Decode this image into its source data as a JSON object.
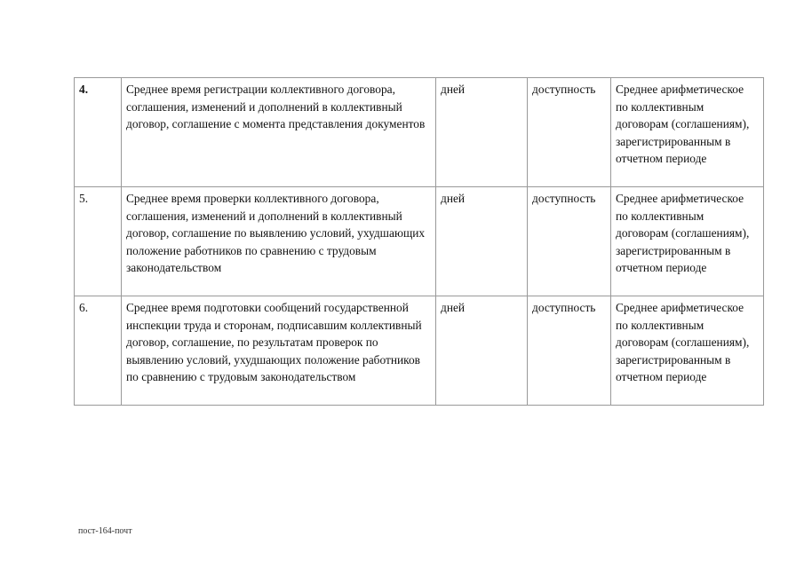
{
  "rows": [
    {
      "num": "4.",
      "indicator": "Среднее время регистрации коллективного договора, соглашения, изменений и дополнений в коллективный договор, соглашение с момента представления документов",
      "unit": "дней",
      "type": "доступность",
      "method": "Среднее арифметическое по коллективным договорам (соглашениям), зарегистрированным в отчетном периоде"
    },
    {
      "num": "5.",
      "indicator": "Среднее время проверки коллективного договора, соглашения, изменений и дополнений в коллективный договор, соглашение по выявлению условий, ухудшающих положение работников по сравнению с трудовым законодательством",
      "unit": "дней",
      "type": "доступность",
      "method": "Среднее арифметическое по коллективным договорам (соглашениям), зарегистрированным в отчетном периоде"
    },
    {
      "num": "6.",
      "indicator": "Среднее время подготовки сообщений государственной инспекции труда и сторонам, подписавшим коллективный договор, соглашение, по результатам проверок по выявлению условий, ухудшающих положение работников по сравнению с трудовым законодательством",
      "unit": "дней",
      "type": "доступность",
      "method": "Среднее арифметическое по коллективным договорам (соглашениям), зарегистрированным в отчетном периоде"
    }
  ],
  "footer": "пост-164-почт"
}
